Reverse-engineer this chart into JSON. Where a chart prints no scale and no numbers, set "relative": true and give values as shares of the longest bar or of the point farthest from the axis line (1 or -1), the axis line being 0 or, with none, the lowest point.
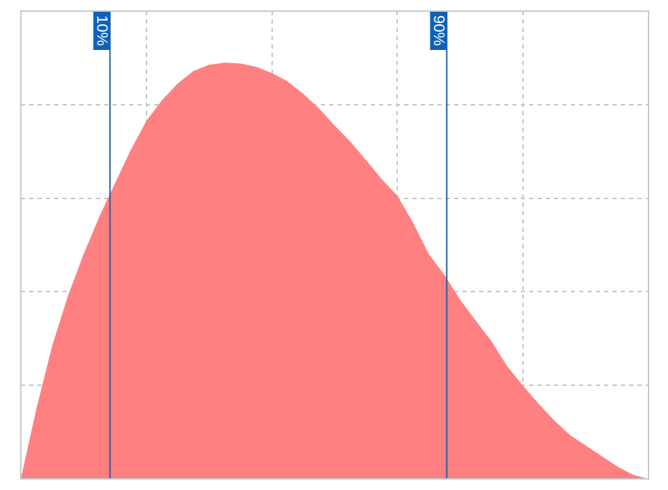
{
  "chart_data": {
    "type": "area",
    "relative": true,
    "grid": true,
    "legend": false,
    "categories": [
      null,
      null,
      null,
      null,
      null,
      null,
      null,
      null,
      null,
      null,
      null,
      null,
      null,
      null,
      null,
      null,
      null,
      null,
      null,
      null,
      null,
      null,
      null,
      null,
      null,
      null,
      null,
      null,
      null,
      null,
      null,
      null,
      null,
      null,
      null,
      null,
      null,
      null,
      null,
      null,
      null
    ],
    "series": [
      {
        "color": "#ff8080",
        "values": [
          0,
          0.17,
          0.32,
          0.44,
          0.54,
          0.63,
          0.71,
          0.79,
          0.86,
          0.91,
          0.95,
          0.98,
          0.995,
          1,
          0.998,
          0.99,
          0.975,
          0.955,
          0.925,
          0.89,
          0.849,
          0.81,
          0.766,
          0.72,
          0.68,
          0.615,
          0.54,
          0.49,
          0.43,
          0.38,
          0.33,
          0.27,
          0.224,
          0.18,
          0.14,
          0.105,
          0.08,
          0.055,
          0.03,
          0.01,
          0
        ]
      }
    ],
    "annotations": [
      "10%",
      "90%"
    ]
  }
}
